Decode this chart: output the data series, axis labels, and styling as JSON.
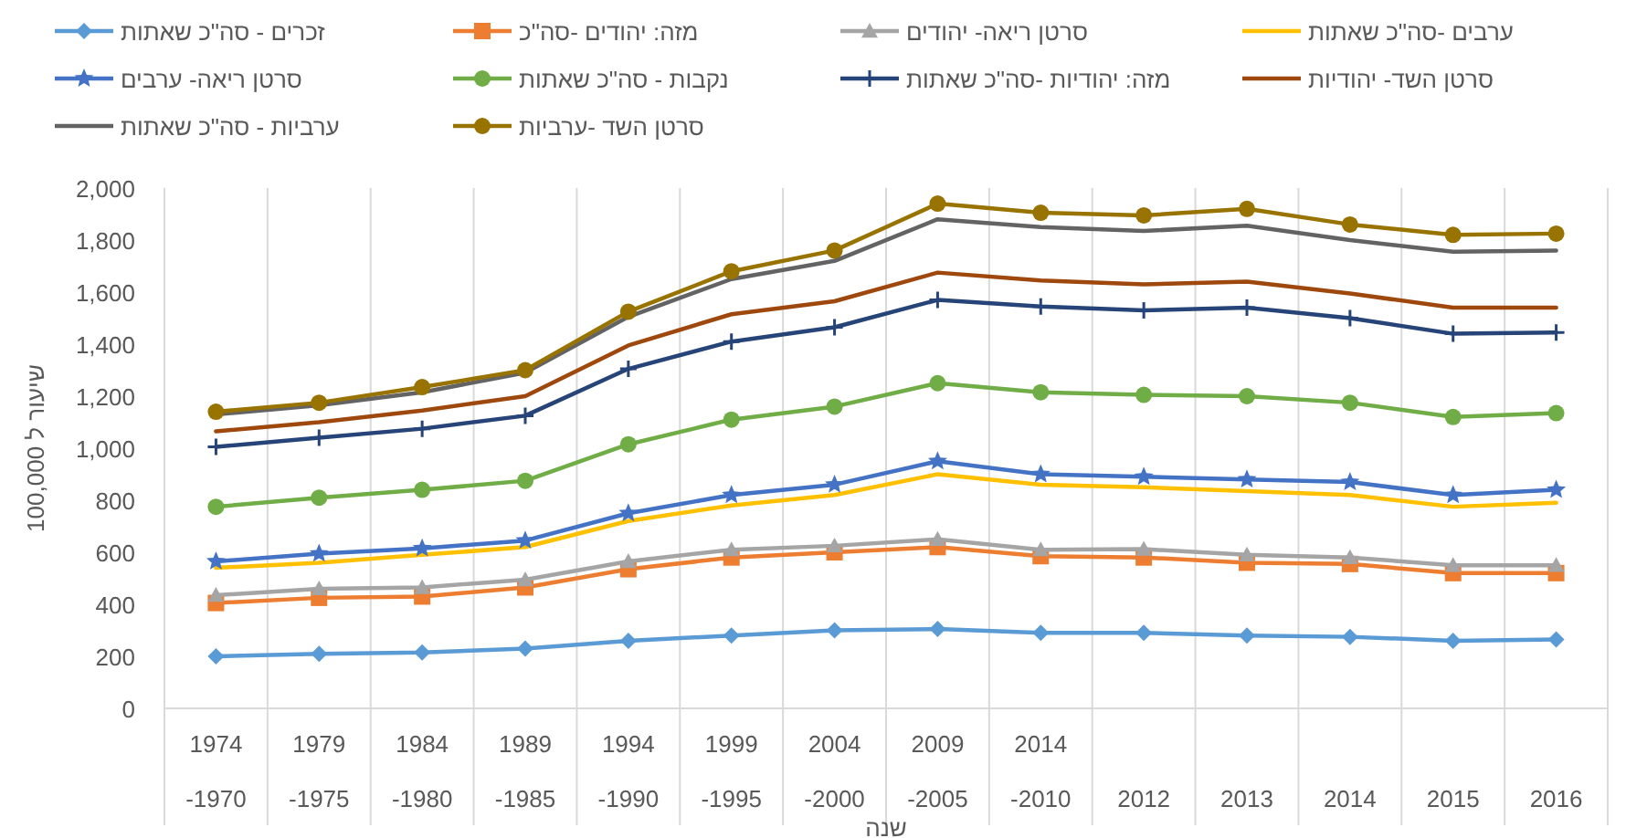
{
  "chart_data": {
    "type": "line",
    "xlabel": "שנה",
    "ylabel": "שיעור ל 100,000",
    "categories": [
      "1974 -1970",
      "1979 -1975",
      "1984 -1980",
      "1989 -1985",
      "1994 -1990",
      "1999 -1995",
      "2004 -2000",
      "2009 -2005",
      "2014 -2010",
      "2012",
      "2013",
      "2014",
      "2015",
      "2016"
    ],
    "ylim": [
      0,
      2000
    ],
    "yticks": [
      {
        "value": 0,
        "label": "0"
      },
      {
        "value": 200,
        "label": "200"
      },
      {
        "value": 400,
        "label": "400"
      },
      {
        "value": 600,
        "label": "600"
      },
      {
        "value": 800,
        "label": "800"
      },
      {
        "value": 1000,
        "label": "1,000"
      },
      {
        "value": 1200,
        "label": "1,200"
      },
      {
        "value": 1400,
        "label": "1,400"
      },
      {
        "value": 1600,
        "label": "1,600"
      },
      {
        "value": 1800,
        "label": "1,800"
      },
      {
        "value": 2000,
        "label": "2,000"
      }
    ],
    "grid": "x",
    "legend": "top",
    "series": [
      {
        "name": "זכרים - סה\"כ שאתות",
        "color": "#5b9bd5",
        "marker": "diamond",
        "values": [
          200,
          210,
          215,
          230,
          260,
          280,
          300,
          305,
          290,
          290,
          280,
          275,
          260,
          265
        ]
      },
      {
        "name": "מזה: יהודים -סה\"כ",
        "color": "#ed7d31",
        "marker": "square",
        "values": [
          405,
          425,
          430,
          465,
          535,
          580,
          600,
          620,
          585,
          580,
          560,
          555,
          520,
          520
        ]
      },
      {
        "name": "סרטן ריאה- יהודים",
        "color": "#a5a5a5",
        "marker": "triangle",
        "values": [
          435,
          460,
          465,
          495,
          565,
          610,
          625,
          650,
          610,
          612,
          590,
          580,
          550,
          550
        ]
      },
      {
        "name": "ערבים -סה\"כ שאתות",
        "color": "#ffc000",
        "marker": "none",
        "values": [
          540,
          560,
          590,
          620,
          720,
          780,
          820,
          900,
          860,
          850,
          835,
          820,
          775,
          790
        ]
      },
      {
        "name": "סרטן ריאה- ערבים",
        "color": "#4472c4",
        "marker": "star",
        "values": [
          565,
          595,
          615,
          645,
          750,
          820,
          860,
          950,
          900,
          890,
          880,
          870,
          820,
          840
        ]
      },
      {
        "name": "נקבות - סה\"כ שאתות",
        "color": "#70ad47",
        "marker": "circle",
        "values": [
          775,
          810,
          840,
          875,
          1015,
          1110,
          1160,
          1250,
          1215,
          1205,
          1200,
          1175,
          1120,
          1135
        ]
      },
      {
        "name": "מזה: יהודיות -סה\"כ שאתות",
        "color": "#264478",
        "marker": "cross",
        "values": [
          1005,
          1040,
          1075,
          1125,
          1305,
          1410,
          1465,
          1570,
          1545,
          1530,
          1540,
          1500,
          1440,
          1445
        ]
      },
      {
        "name": "סרטן השד- יהודיות",
        "color": "#9e480e",
        "marker": "none",
        "values": [
          1065,
          1100,
          1145,
          1200,
          1395,
          1515,
          1565,
          1675,
          1645,
          1630,
          1640,
          1595,
          1540,
          1540
        ]
      },
      {
        "name": "ערביות - סה\"כ שאתות",
        "color": "#636363",
        "marker": "none",
        "values": [
          1130,
          1165,
          1215,
          1290,
          1505,
          1650,
          1720,
          1880,
          1850,
          1835,
          1855,
          1800,
          1755,
          1760
        ]
      },
      {
        "name": "סרטן השד -ערביות",
        "color": "#997300",
        "marker": "circle",
        "values": [
          1140,
          1175,
          1235,
          1300,
          1525,
          1680,
          1760,
          1940,
          1905,
          1895,
          1920,
          1860,
          1820,
          1825
        ]
      }
    ]
  }
}
